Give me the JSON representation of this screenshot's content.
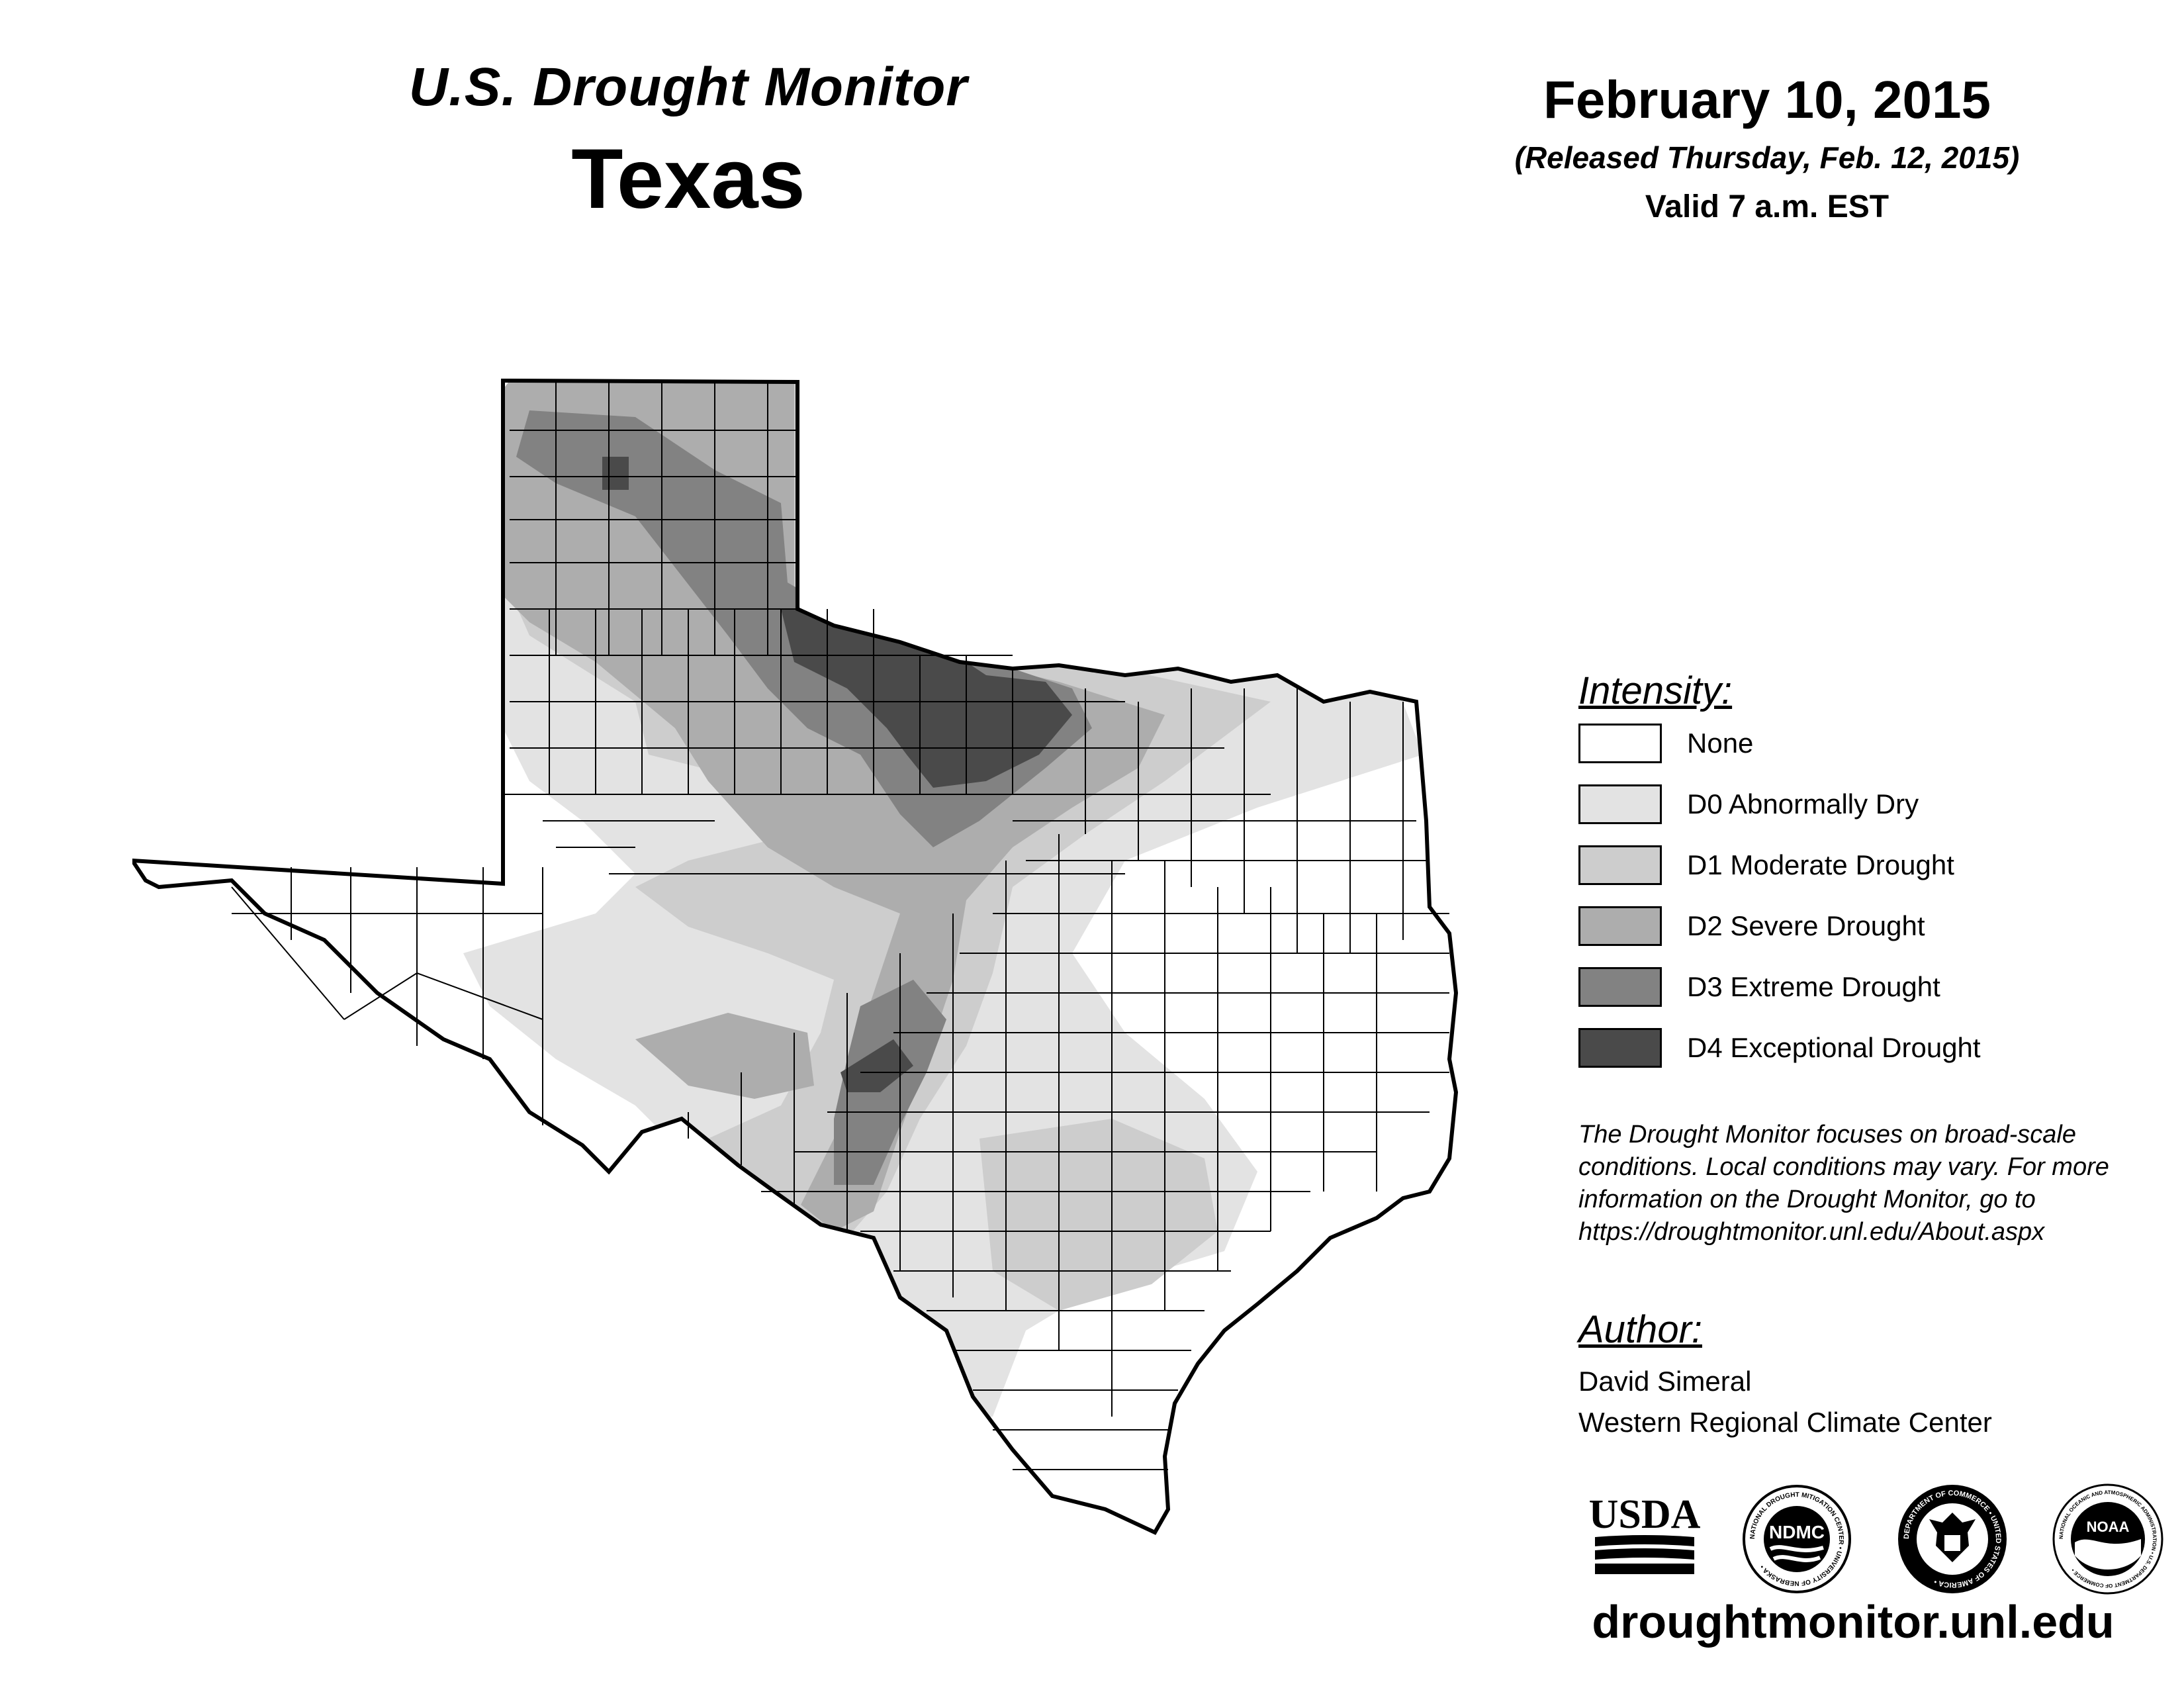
{
  "header": {
    "monitor_title": "U.S. Drought Monitor",
    "state": "Texas",
    "date": "February 10, 2015",
    "released": "(Released Thursday, Feb. 12, 2015)",
    "valid": "Valid 7 a.m. EST"
  },
  "legend": {
    "heading": "Intensity:",
    "items": [
      {
        "label": "None",
        "color": "#ffffff"
      },
      {
        "label": "D0 Abnormally Dry",
        "color": "#e3e3e3"
      },
      {
        "label": "D1 Moderate Drought",
        "color": "#cdcdcd"
      },
      {
        "label": "D2 Severe Drought",
        "color": "#adadad"
      },
      {
        "label": "D3 Extreme Drought",
        "color": "#828282"
      },
      {
        "label": "D4 Exceptional Drought",
        "color": "#4a4a4a"
      }
    ]
  },
  "note": "The Drought Monitor focuses on broad-scale conditions. Local conditions may vary. For more information on the Drought Monitor, go to https://droughtmonitor.unl.edu/About.aspx",
  "author": {
    "heading": "Author:",
    "name": "David Simeral",
    "org": "Western Regional Climate Center"
  },
  "logos": {
    "usda": "USDA",
    "ndmc": "NDMC",
    "ndmc_ring": "NATIONAL DROUGHT MITIGATION CENTER • UNIVERSITY OF NEBRASKA •",
    "commerce_ring": "DEPARTMENT OF COMMERCE • UNITED STATES OF AMERICA •",
    "noaa": "NOAA",
    "noaa_ring": "NATIONAL OCEANIC AND ATMOSPHERIC ADMINISTRATION • U.S. DEPARTMENT OF COMMERCE •"
  },
  "website": "droughtmonitor.unl.edu",
  "map": {
    "state_outline_color": "#000000",
    "category_colors": {
      "D0": "#e3e3e3",
      "D1": "#cdcdcd",
      "D2": "#adadad",
      "D3": "#828282",
      "D4": "#4a4a4a"
    }
  }
}
